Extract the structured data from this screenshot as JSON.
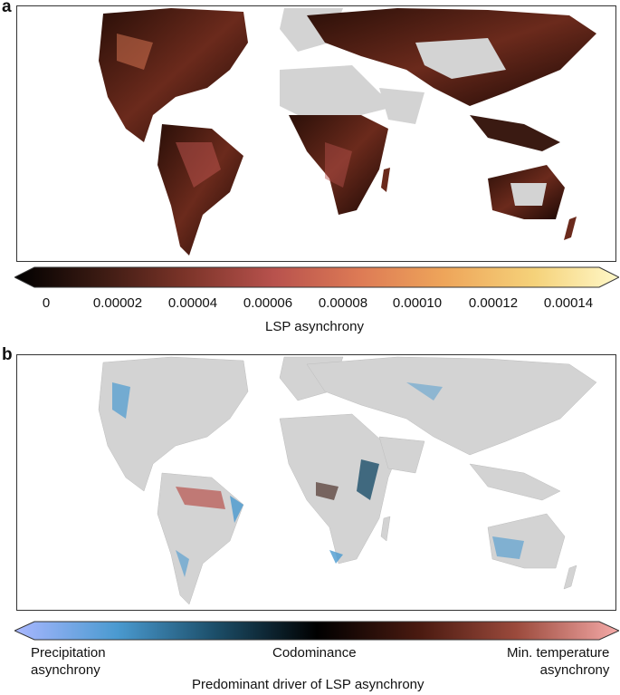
{
  "panels": {
    "a": {
      "label": "a",
      "colorbar": {
        "ticks": [
          "0",
          "0.00002",
          "0.00004",
          "0.00006",
          "0.00008",
          "0.00010",
          "0.00012",
          "0.00014"
        ],
        "title": "LSP asynchrony",
        "colors": [
          "#000000",
          "#3a1a12",
          "#7a3328",
          "#b8524d",
          "#dd7a55",
          "#eea55a",
          "#f5d27a",
          "#fff8c8"
        ]
      }
    },
    "b": {
      "label": "b",
      "colorbar": {
        "left_label_line1": "Precipitation",
        "left_label_line2": "asynchrony",
        "center_label": "Codominance",
        "right_label_line1": "Min. temperature",
        "right_label_line2": "asynchrony",
        "title": "Predominant driver of LSP asynchrony",
        "colors": [
          "#a9b7ff",
          "#4a9ad0",
          "#1c4f6a",
          "#000000",
          "#4a1a10",
          "#9b4a3c",
          "#f5aaa8"
        ]
      }
    }
  },
  "colors": {
    "land_nodata": "#d3d3d3",
    "frame": "#333333"
  }
}
